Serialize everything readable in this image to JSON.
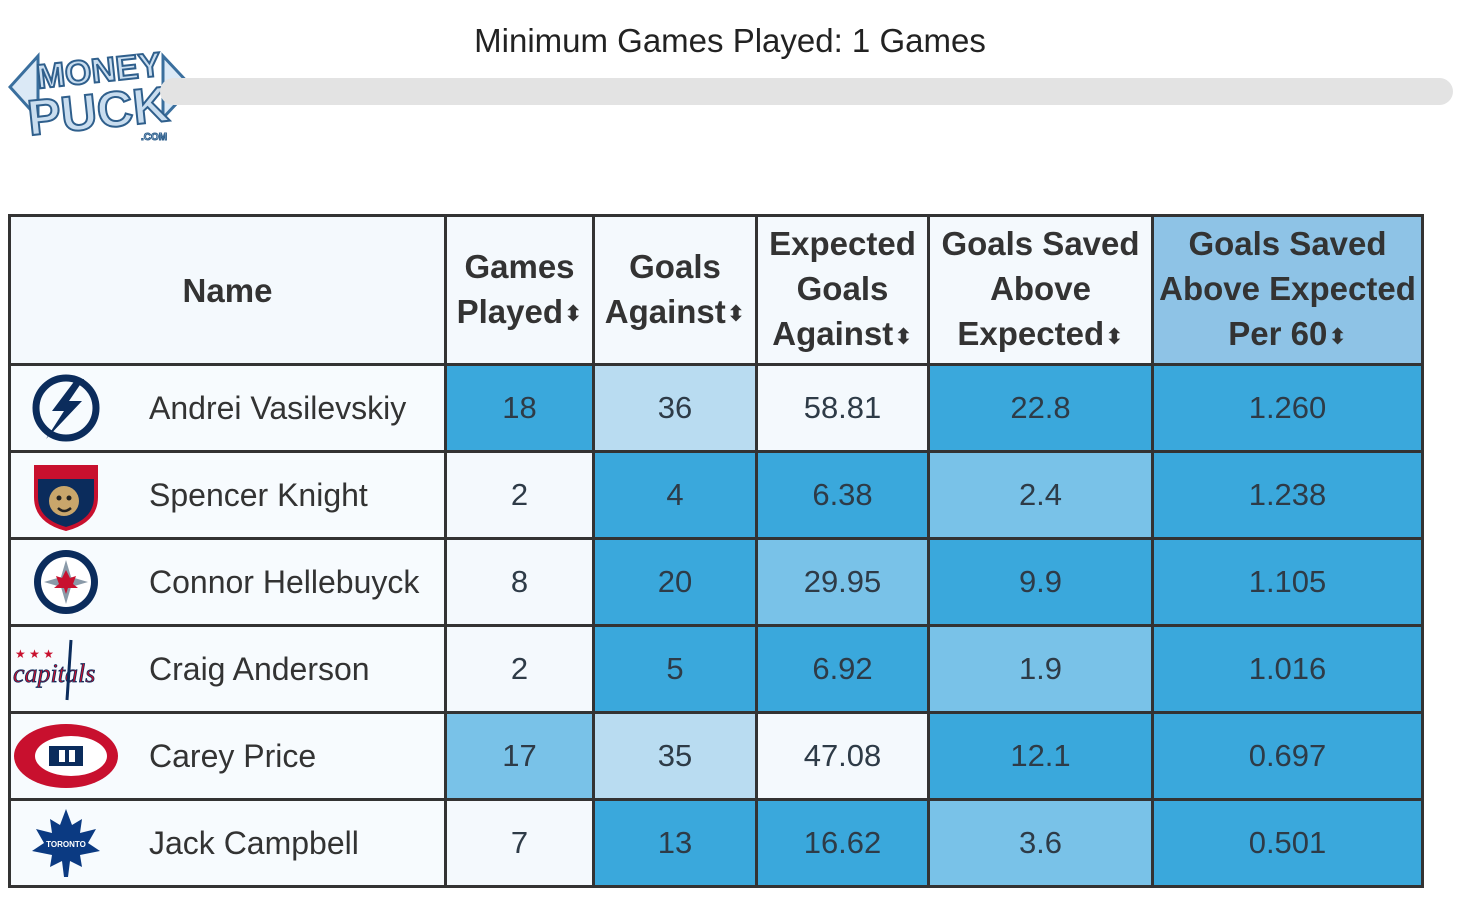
{
  "brand": {
    "logo_name": "MoneyPuck.com",
    "left_arrow": "◁",
    "right_arrow": "▷"
  },
  "filter": {
    "title": "Minimum Games Played: 1 Games",
    "slider_value": 1
  },
  "table": {
    "headers": [
      {
        "label": "Name",
        "sortable": false
      },
      {
        "label": "Games Played",
        "sortable": true
      },
      {
        "label": "Goals Against",
        "sortable": true
      },
      {
        "label": "Expected Goals Against",
        "sortable": true
      },
      {
        "label": "Goals Saved Above Expected",
        "sortable": true
      },
      {
        "label": "Goals Saved Above Expected Per 60",
        "sortable": true,
        "active": true
      }
    ],
    "sort_icon": "⬍",
    "rows": [
      {
        "team": "lightning-logo-icon",
        "name": "Andrei Vasilevskiy",
        "gp": "18",
        "ga": "36",
        "xga": "58.81",
        "gsax": "22.8",
        "gsax60": "1.260"
      },
      {
        "team": "panthers-logo-icon",
        "name": "Spencer Knight",
        "gp": "2",
        "ga": "4",
        "xga": "6.38",
        "gsax": "2.4",
        "gsax60": "1.238"
      },
      {
        "team": "jets-logo-icon",
        "name": "Connor Hellebuyck",
        "gp": "8",
        "ga": "20",
        "xga": "29.95",
        "gsax": "9.9",
        "gsax60": "1.105"
      },
      {
        "team": "capitals-logo-icon",
        "name": "Craig Anderson",
        "gp": "2",
        "ga": "5",
        "xga": "6.92",
        "gsax": "1.9",
        "gsax60": "1.016"
      },
      {
        "team": "canadiens-logo-icon",
        "name": "Carey Price",
        "gp": "17",
        "ga": "35",
        "xga": "47.08",
        "gsax": "12.1",
        "gsax60": "0.697"
      },
      {
        "team": "maple-leafs-logo-icon",
        "name": "Jack Campbell",
        "gp": "7",
        "ga": "13",
        "xga": "16.62",
        "gsax": "3.6",
        "gsax60": "0.501"
      }
    ]
  },
  "colors": {
    "light": "#f4f9fd",
    "pale": "#b9dcf1",
    "mid": "#79c2e8",
    "strong": "#3aa8dc",
    "header_active": "#8ec3e6"
  }
}
